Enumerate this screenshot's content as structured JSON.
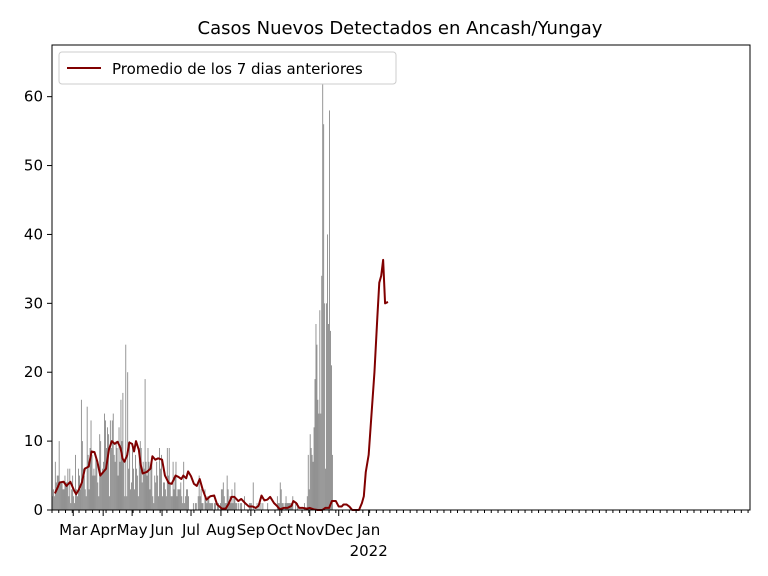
{
  "chart_data": {
    "type": "bar",
    "title": "Casos Nuevos Detectados en Ancash/Yungay",
    "xlabel": "",
    "ylabel": "",
    "ylim": [
      0,
      67.5
    ],
    "yticks": [
      0,
      10,
      20,
      30,
      40,
      50,
      60
    ],
    "x_start": "2020-02-08",
    "x_end": "2022-01-31",
    "xticks": [
      {
        "date": "2020-03-01",
        "label": "Mar"
      },
      {
        "date": "2020-04-01",
        "label": "Apr"
      },
      {
        "date": "2020-05-01",
        "label": "May"
      },
      {
        "date": "2020-06-01",
        "label": "Jun"
      },
      {
        "date": "2020-07-01",
        "label": "Jul"
      },
      {
        "date": "2020-08-01",
        "label": "Aug"
      },
      {
        "date": "2020-09-01",
        "label": "Sep"
      },
      {
        "date": "2020-10-01",
        "label": "Oct"
      },
      {
        "date": "2020-11-01",
        "label": "Nov"
      },
      {
        "date": "2020-12-01",
        "label": "Dec"
      },
      {
        "date": "2021-01-01",
        "label": "Jan",
        "sublabel": "2022"
      }
    ],
    "bars_start_date": "2020-02-08",
    "bars_daily_values": [
      2,
      3,
      2,
      7,
      4,
      5,
      5,
      10,
      4,
      4,
      4,
      3,
      3,
      5,
      4,
      4,
      6,
      2,
      6,
      1,
      3,
      5,
      2,
      1,
      8,
      3,
      2,
      6,
      5,
      3,
      16,
      10,
      6,
      5,
      3,
      2,
      15,
      8,
      3,
      9,
      13,
      8,
      5,
      6,
      5,
      8,
      7,
      4,
      2,
      11,
      10,
      5,
      6,
      7,
      14,
      13,
      9,
      12,
      11,
      2,
      13,
      9,
      13,
      14,
      8,
      7,
      10,
      9,
      5,
      12,
      7,
      16,
      10,
      17,
      7,
      2,
      24,
      2,
      20,
      6,
      10,
      3,
      4,
      9,
      6,
      3,
      8,
      6,
      5,
      2,
      9,
      10,
      9,
      4,
      7,
      6,
      19,
      7,
      5,
      9,
      7,
      3,
      6,
      7,
      2,
      1,
      5,
      4,
      7,
      5,
      2,
      9,
      6,
      8,
      2,
      4,
      4,
      3,
      2,
      9,
      5,
      9,
      4,
      2,
      2,
      7,
      3,
      5,
      7,
      2,
      3,
      3,
      3,
      4,
      2,
      1,
      7,
      1,
      2,
      3,
      3,
      2,
      0,
      0,
      0,
      0,
      1,
      0,
      1,
      1,
      0,
      2,
      5,
      2,
      3,
      1,
      1,
      0,
      3,
      2,
      1,
      2,
      2,
      1,
      1,
      1,
      1,
      0,
      1,
      1,
      0,
      1,
      1,
      0,
      1,
      3,
      3,
      4,
      2,
      1,
      1,
      5,
      3,
      1,
      2,
      1,
      3,
      1,
      2,
      4,
      1,
      1,
      0,
      1,
      0,
      1,
      1,
      0,
      0,
      2,
      0,
      0,
      0,
      0,
      1,
      1,
      1,
      0,
      4,
      0,
      0,
      0,
      1,
      0,
      1,
      0,
      1,
      0,
      1,
      0,
      0,
      0,
      0,
      1,
      0,
      0,
      0,
      0,
      0,
      0,
      0,
      0,
      0,
      2,
      1,
      1,
      4,
      3,
      1,
      1,
      0,
      1,
      2,
      1,
      1,
      1,
      1,
      1,
      1,
      2,
      0,
      0,
      1,
      0,
      1,
      0,
      0,
      0,
      0,
      0,
      0,
      1,
      0,
      0,
      2,
      8,
      3,
      11,
      9,
      8,
      7,
      12,
      19,
      27,
      24,
      16,
      14,
      29,
      14,
      34,
      64,
      56,
      30,
      6,
      30,
      40,
      27,
      58,
      26,
      21,
      8
    ],
    "series": [
      {
        "name": "Promedio de los 7 dias anteriores",
        "color": "#800000",
        "points": [
          [
            "2020-02-11",
            2.4
          ],
          [
            "2020-02-14",
            3.3
          ],
          [
            "2020-02-16",
            4.0
          ],
          [
            "2020-02-20",
            4.1
          ],
          [
            "2020-02-23",
            3.5
          ],
          [
            "2020-02-27",
            4.1
          ],
          [
            "2020-03-02",
            2.8
          ],
          [
            "2020-03-04",
            2.3
          ],
          [
            "2020-03-07",
            3.0
          ],
          [
            "2020-03-10",
            4.0
          ],
          [
            "2020-03-13",
            6.0
          ],
          [
            "2020-03-17",
            6.3
          ],
          [
            "2020-03-20",
            8.5
          ],
          [
            "2020-03-23",
            8.4
          ],
          [
            "2020-03-26",
            7.0
          ],
          [
            "2020-03-29",
            5.0
          ],
          [
            "2020-04-01",
            5.5
          ],
          [
            "2020-04-04",
            6.0
          ],
          [
            "2020-04-07",
            8.8
          ],
          [
            "2020-04-10",
            10.0
          ],
          [
            "2020-04-13",
            9.6
          ],
          [
            "2020-04-16",
            9.9
          ],
          [
            "2020-04-19",
            9.0
          ],
          [
            "2020-04-21",
            7.5
          ],
          [
            "2020-04-23",
            7.0
          ],
          [
            "2020-04-26",
            8.0
          ],
          [
            "2020-04-28",
            9.8
          ],
          [
            "2020-05-01",
            9.6
          ],
          [
            "2020-05-03",
            8.5
          ],
          [
            "2020-05-05",
            10.0
          ],
          [
            "2020-05-08",
            8.7
          ],
          [
            "2020-05-10",
            6.5
          ],
          [
            "2020-05-12",
            5.3
          ],
          [
            "2020-05-16",
            5.5
          ],
          [
            "2020-05-20",
            6.0
          ],
          [
            "2020-05-22",
            7.8
          ],
          [
            "2020-05-25",
            7.3
          ],
          [
            "2020-05-28",
            7.5
          ],
          [
            "2020-06-01",
            7.3
          ],
          [
            "2020-06-04",
            5.0
          ],
          [
            "2020-06-08",
            3.9
          ],
          [
            "2020-06-11",
            3.8
          ],
          [
            "2020-06-15",
            5.0
          ],
          [
            "2020-06-18",
            4.8
          ],
          [
            "2020-06-21",
            4.5
          ],
          [
            "2020-06-23",
            5.0
          ],
          [
            "2020-06-26",
            4.6
          ],
          [
            "2020-06-28",
            5.6
          ],
          [
            "2020-07-01",
            4.9
          ],
          [
            "2020-07-04",
            3.8
          ],
          [
            "2020-07-07",
            3.5
          ],
          [
            "2020-07-10",
            4.5
          ],
          [
            "2020-07-13",
            3.0
          ],
          [
            "2020-07-17",
            1.5
          ],
          [
            "2020-07-21",
            2.0
          ],
          [
            "2020-07-25",
            2.1
          ],
          [
            "2020-07-28",
            0.8
          ],
          [
            "2020-08-02",
            0.2
          ],
          [
            "2020-08-06",
            0.2
          ],
          [
            "2020-08-09",
            0.9
          ],
          [
            "2020-08-12",
            1.9
          ],
          [
            "2020-08-15",
            1.9
          ],
          [
            "2020-08-19",
            1.3
          ],
          [
            "2020-08-22",
            1.6
          ],
          [
            "2020-08-26",
            1.0
          ],
          [
            "2020-08-30",
            0.5
          ],
          [
            "2020-09-03",
            0.5
          ],
          [
            "2020-09-06",
            0.3
          ],
          [
            "2020-09-09",
            0.6
          ],
          [
            "2020-09-12",
            2.1
          ],
          [
            "2020-09-15",
            1.4
          ],
          [
            "2020-09-18",
            1.5
          ],
          [
            "2020-09-21",
            1.9
          ],
          [
            "2020-09-25",
            1.0
          ],
          [
            "2020-09-28",
            0.6
          ],
          [
            "2020-10-01",
            0.1
          ],
          [
            "2020-10-05",
            0.3
          ],
          [
            "2020-10-09",
            0.3
          ],
          [
            "2020-10-13",
            0.6
          ],
          [
            "2020-10-15",
            1.3
          ],
          [
            "2020-10-18",
            1.0
          ],
          [
            "2020-10-21",
            0.3
          ],
          [
            "2020-10-25",
            0.3
          ],
          [
            "2020-10-29",
            0.2
          ],
          [
            "2020-11-01",
            0.3
          ],
          [
            "2020-11-05",
            0.1
          ],
          [
            "2020-11-09",
            0.0
          ],
          [
            "2020-11-14",
            0.0
          ],
          [
            "2020-11-17",
            0.3
          ],
          [
            "2020-11-21",
            0.3
          ],
          [
            "2020-11-24",
            1.3
          ],
          [
            "2020-11-28",
            1.3
          ],
          [
            "2020-12-01",
            0.5
          ],
          [
            "2020-12-04",
            0.5
          ],
          [
            "2020-12-06",
            0.8
          ],
          [
            "2020-12-09",
            0.8
          ],
          [
            "2020-12-12",
            0.5
          ],
          [
            "2020-12-15",
            0.0
          ],
          [
            "2020-12-19",
            0.0
          ],
          [
            "2020-12-22",
            0.0
          ],
          [
            "2020-12-25",
            1.0
          ],
          [
            "2020-12-27",
            2.0
          ],
          [
            "2020-12-29",
            5.5
          ],
          [
            "2021-01-01",
            8.0
          ],
          [
            "2021-01-03",
            12.0
          ],
          [
            "2021-01-05",
            16.0
          ],
          [
            "2021-01-07",
            20.0
          ],
          [
            "2021-01-10",
            28.0
          ],
          [
            "2021-01-12",
            33.0
          ],
          [
            "2021-01-14",
            34.0
          ],
          [
            "2021-01-16",
            36.3
          ],
          [
            "2021-01-18",
            30.0
          ],
          [
            "2021-01-21",
            30.2
          ]
        ]
      }
    ],
    "bar_color": "#808080",
    "grid": false,
    "legend_position": "upper-left"
  }
}
